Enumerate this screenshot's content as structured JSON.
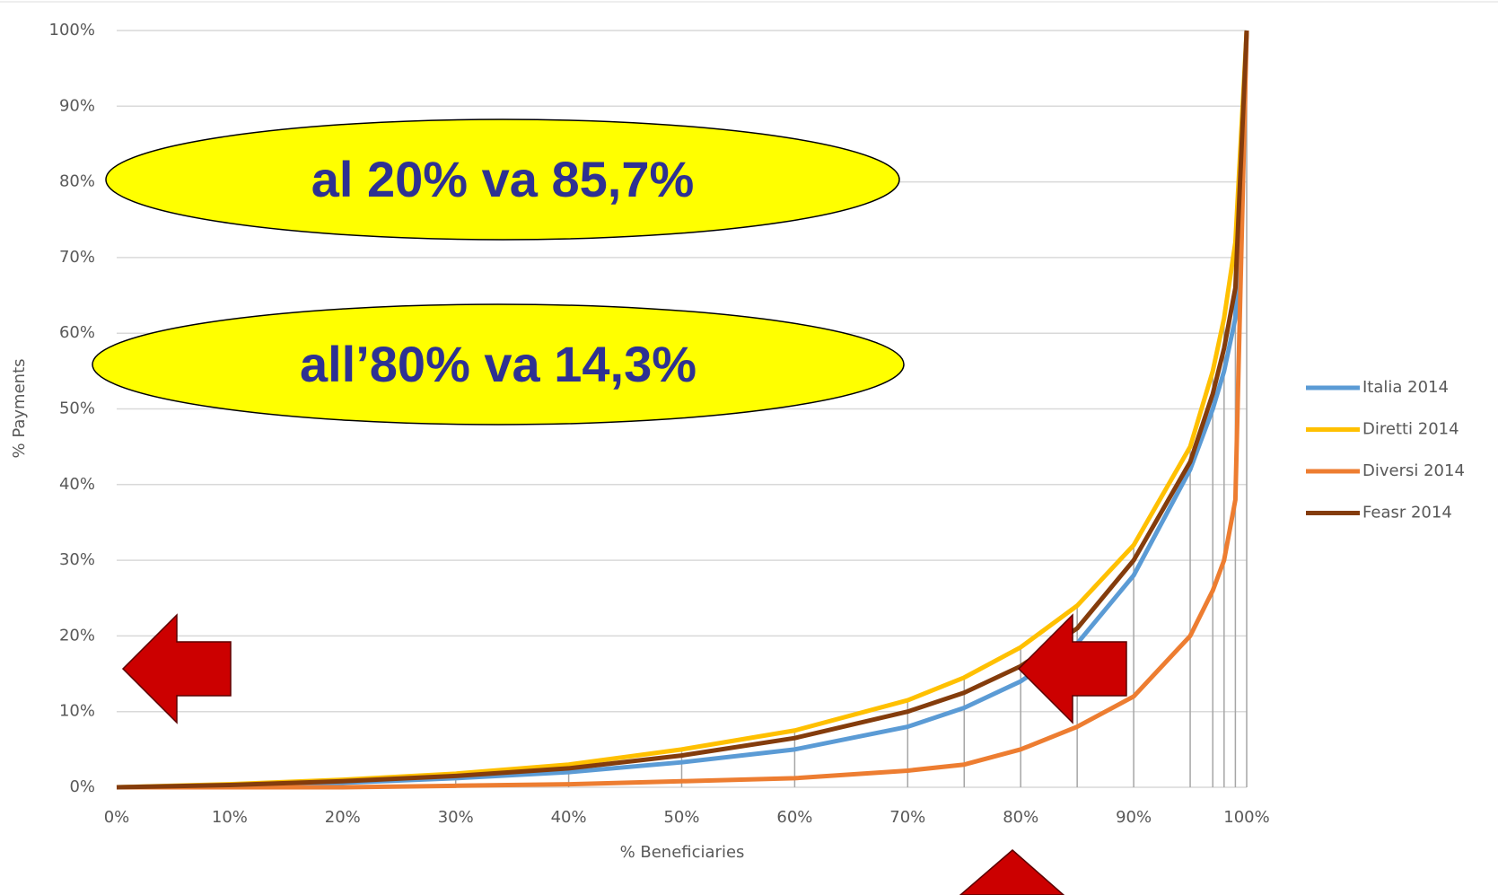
{
  "chart_data": {
    "type": "line",
    "xlabel": "% Beneficiaries",
    "ylabel": "% Payments",
    "annotations": [
      "al 20% va 85,7%",
      "all’80% va 14,3%"
    ],
    "x": [
      0,
      10,
      20,
      30,
      40,
      50,
      60,
      70,
      75,
      80,
      85,
      90,
      95,
      97,
      98,
      99,
      100
    ],
    "series": [
      {
        "name": "Italia 2014",
        "color": "#5b9bd5",
        "values": [
          0,
          0.2,
          0.6,
          1.2,
          2,
          3.3,
          5,
          8,
          10.5,
          14,
          19,
          28,
          42,
          50,
          55,
          62,
          100
        ]
      },
      {
        "name": "Diretti 2014",
        "color": "#ffc000",
        "values": [
          0,
          0.4,
          1,
          1.8,
          3,
          5,
          7.5,
          11.5,
          14.5,
          18.5,
          24,
          32,
          45,
          55,
          62,
          72,
          100
        ]
      },
      {
        "name": "Diversi 2014",
        "color": "#ed7d31",
        "values": [
          0,
          0,
          0,
          0.2,
          0.4,
          0.8,
          1.2,
          2.2,
          3,
          5,
          8,
          12,
          20,
          26,
          30,
          38,
          100
        ]
      },
      {
        "name": "Feasr 2014",
        "color": "#843c0c",
        "values": [
          0,
          0.3,
          0.8,
          1.5,
          2.5,
          4.2,
          6.5,
          10,
          12.5,
          16,
          21,
          30,
          43,
          52,
          58,
          66,
          100
        ]
      }
    ],
    "xlim": [
      0,
      100
    ],
    "xticks": [
      {
        "value": 0,
        "label": "0%"
      },
      {
        "value": 10,
        "label": "10%"
      },
      {
        "value": 20,
        "label": "20%"
      },
      {
        "value": 30,
        "label": "30%"
      },
      {
        "value": 40,
        "label": "40%"
      },
      {
        "value": 50,
        "label": "50%"
      },
      {
        "value": 60,
        "label": "60%"
      },
      {
        "value": 70,
        "label": "70%"
      },
      {
        "value": 80,
        "label": "80%"
      },
      {
        "value": 90,
        "label": "90%"
      },
      {
        "value": 100,
        "label": "100%"
      }
    ],
    "ylim": [
      0,
      100
    ],
    "yticks": [
      {
        "value": 0,
        "label": "0%"
      },
      {
        "value": 10,
        "label": "10%"
      },
      {
        "value": 20,
        "label": "20%"
      },
      {
        "value": 30,
        "label": "30%"
      },
      {
        "value": 40,
        "label": "40%"
      },
      {
        "value": 50,
        "label": "50%"
      },
      {
        "value": 60,
        "label": "60%"
      },
      {
        "value": 70,
        "label": "70%"
      },
      {
        "value": 80,
        "label": "80%"
      },
      {
        "value": 90,
        "label": "90%"
      },
      {
        "value": 100,
        "label": "100%"
      }
    ],
    "grid": true,
    "legend": "right"
  }
}
